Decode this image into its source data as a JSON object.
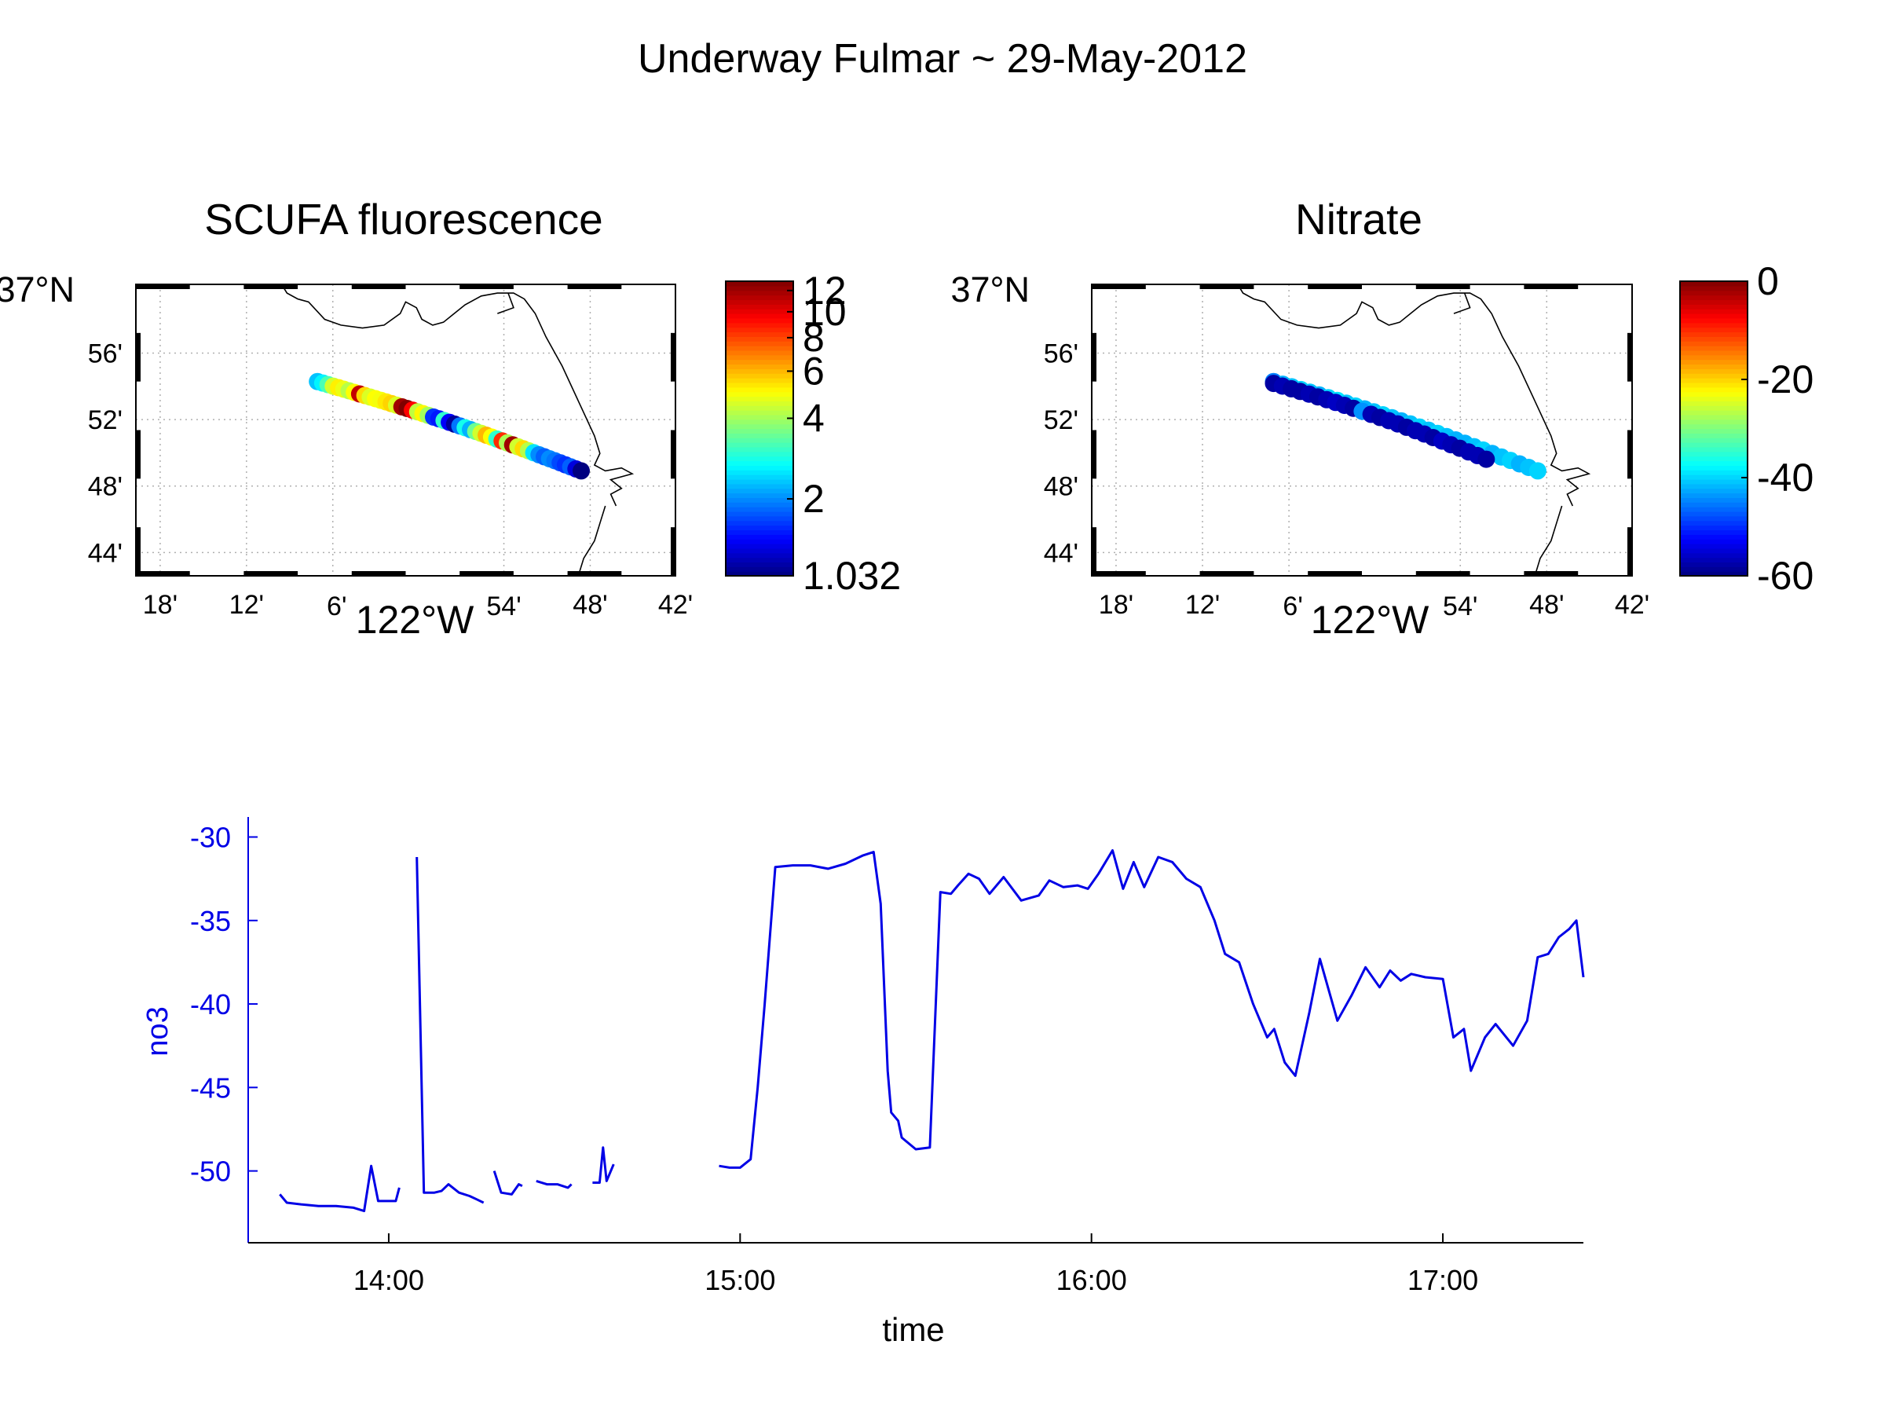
{
  "figure": {
    "title": "Underway Fulmar ~ 29-May-2012"
  },
  "colors": {
    "axes": "#000000",
    "grid": "#b0b0b0",
    "line": "#0000e6",
    "coast": "#000000"
  },
  "chart_data": [
    {
      "type": "scatter",
      "id": "fluor",
      "title": "SCUFA fluorescence",
      "lon_ticks": [
        "18'",
        "12'",
        "6'",
        "54'",
        "48'",
        "42'"
      ],
      "lon_center_label": "122°W",
      "lat_ticks": [
        "44'",
        "48'",
        "52'",
        "56'"
      ],
      "lat_top_label": "37°N",
      "xlim": [
        -122.33,
        -121.7
      ],
      "ylim": [
        36.7,
        37.0
      ],
      "grid": true,
      "colorbar": {
        "scale": "log",
        "range": [
          1.032,
          13
        ],
        "tick_labels": [
          "1.032",
          "2",
          "4",
          "6",
          "8",
          "10",
          "12"
        ],
        "tick_values": [
          1.032,
          2,
          4,
          6,
          8,
          10,
          12
        ]
      },
      "track": {
        "start": [
          -122.118,
          36.9
        ],
        "end": [
          -121.81,
          36.808
        ],
        "values": [
          2.3,
          2.6,
          3.2,
          4.5,
          5.2,
          4.8,
          4.2,
          5.0,
          11.0,
          5.5,
          4.6,
          5.0,
          4.9,
          5.3,
          5.6,
          4.6,
          12.0,
          13.0,
          9.5,
          4.3,
          5.1,
          4.0,
          1.6,
          1.5,
          3.0,
          1.4,
          1.1,
          1.9,
          2.8,
          2.2,
          3.5,
          4.5,
          6.0,
          5.0,
          3.0,
          8.5,
          4.1,
          12.0,
          4.5,
          5.5,
          4.2,
          2.5,
          2.0,
          1.8,
          2.0,
          1.9,
          1.7,
          1.6,
          1.8,
          1.3,
          1.032
        ]
      }
    },
    {
      "type": "scatter",
      "id": "nitrate",
      "title": "Nitrate",
      "lon_ticks": [
        "18'",
        "12'",
        "6'",
        "54'",
        "48'",
        "42'"
      ],
      "lon_center_label": "122°W",
      "lat_ticks": [
        "44'",
        "48'",
        "52'",
        "56'"
      ],
      "lat_top_label": "37°N",
      "xlim": [
        -122.33,
        -121.7
      ],
      "ylim": [
        36.7,
        37.0
      ],
      "grid": true,
      "colorbar": {
        "scale": "linear",
        "range": [
          -60,
          0
        ],
        "tick_labels": [
          "0",
          "-20",
          "-40",
          "-60"
        ],
        "tick_values": [
          0,
          -20,
          -40,
          -60
        ]
      },
      "track_upper": {
        "start": [
          -122.118,
          36.9
        ],
        "end": [
          -121.81,
          36.808
        ],
        "values": [
          -45,
          -42,
          -41,
          -40,
          -41,
          -42,
          -40,
          -39,
          -41,
          -40,
          -42,
          -41,
          -40,
          -41,
          -42,
          -41,
          -40,
          -41,
          -40,
          -41,
          -42,
          -42,
          -41,
          -40,
          -42,
          -41,
          -40,
          -42,
          -41,
          -40
        ]
      },
      "track_lower": {
        "start": [
          -122.118,
          36.898
        ],
        "end": [
          -121.87,
          36.82
        ],
        "values": [
          -58,
          -57,
          -58,
          -58,
          -57,
          -58,
          -57,
          -56,
          -57,
          -58,
          -44,
          -57,
          -58,
          -57,
          -57,
          -58,
          -57,
          -57,
          -58,
          -56,
          -57,
          -58,
          -57,
          -57,
          -58
        ]
      }
    },
    {
      "type": "line",
      "id": "no3",
      "title": "",
      "xlabel": "time",
      "ylabel": "no3",
      "x_tick_labels": [
        "14:00",
        "15:00",
        "16:00",
        "17:00"
      ],
      "x_tick_values": [
        14.0,
        15.0,
        16.0,
        17.0
      ],
      "y_tick_labels": [
        "-30",
        "-35",
        "-40",
        "-45",
        "-50"
      ],
      "y_tick_values": [
        -30,
        -35,
        -40,
        -45,
        -50
      ],
      "xlim": [
        13.6,
        17.4
      ],
      "ylim": [
        -54.3,
        -28.8
      ],
      "grid": false,
      "segments": [
        [
          [
            13.69,
            -51.4
          ],
          [
            13.71,
            -51.9
          ],
          [
            13.75,
            -52.0
          ],
          [
            13.8,
            -52.1
          ],
          [
            13.85,
            -52.1
          ],
          [
            13.9,
            -52.2
          ],
          [
            13.93,
            -52.4
          ],
          [
            13.95,
            -49.7
          ],
          [
            13.97,
            -51.8
          ],
          [
            14.0,
            -51.8
          ],
          [
            14.02,
            -51.8
          ],
          [
            14.03,
            -51.0
          ]
        ],
        [
          [
            14.08,
            -31.2
          ],
          [
            14.1,
            -51.3
          ],
          [
            14.13,
            -51.3
          ],
          [
            14.15,
            -51.2
          ],
          [
            14.17,
            -50.8
          ],
          [
            14.2,
            -51.3
          ],
          [
            14.23,
            -51.5
          ],
          [
            14.25,
            -51.7
          ],
          [
            14.27,
            -51.9
          ]
        ],
        [
          [
            14.3,
            -50.0
          ],
          [
            14.32,
            -51.3
          ],
          [
            14.35,
            -51.4
          ],
          [
            14.37,
            -50.8
          ],
          [
            14.38,
            -50.9
          ]
        ],
        [
          [
            14.42,
            -50.6
          ],
          [
            14.45,
            -50.8
          ],
          [
            14.48,
            -50.8
          ],
          [
            14.51,
            -51.0
          ],
          [
            14.52,
            -50.8
          ]
        ],
        [
          [
            14.58,
            -50.7
          ],
          [
            14.6,
            -50.7
          ],
          [
            14.61,
            -48.6
          ],
          [
            14.62,
            -50.6
          ],
          [
            14.64,
            -49.6
          ]
        ],
        [
          [
            14.94,
            -49.7
          ],
          [
            14.97,
            -49.8
          ],
          [
            15.0,
            -49.8
          ],
          [
            15.03,
            -49.3
          ],
          [
            15.05,
            -45.0
          ],
          [
            15.07,
            -40.0
          ],
          [
            15.1,
            -31.8
          ],
          [
            15.15,
            -31.7
          ],
          [
            15.2,
            -31.7
          ],
          [
            15.25,
            -31.9
          ],
          [
            15.3,
            -31.6
          ],
          [
            15.35,
            -31.1
          ],
          [
            15.38,
            -30.9
          ],
          [
            15.4,
            -34.0
          ],
          [
            15.42,
            -44.0
          ],
          [
            15.43,
            -46.5
          ],
          [
            15.45,
            -47.0
          ],
          [
            15.46,
            -48.0
          ],
          [
            15.5,
            -48.7
          ],
          [
            15.54,
            -48.6
          ],
          [
            15.57,
            -33.3
          ],
          [
            15.6,
            -33.4
          ],
          [
            15.62,
            -32.9
          ],
          [
            15.65,
            -32.2
          ],
          [
            15.68,
            -32.5
          ],
          [
            15.71,
            -33.4
          ],
          [
            15.75,
            -32.4
          ],
          [
            15.8,
            -33.8
          ],
          [
            15.85,
            -33.5
          ],
          [
            15.88,
            -32.6
          ],
          [
            15.92,
            -33.0
          ],
          [
            15.96,
            -32.9
          ],
          [
            15.99,
            -33.1
          ],
          [
            16.02,
            -32.2
          ],
          [
            16.06,
            -30.8
          ],
          [
            16.09,
            -33.1
          ],
          [
            16.12,
            -31.5
          ],
          [
            16.15,
            -33.0
          ],
          [
            16.19,
            -31.2
          ],
          [
            16.23,
            -31.5
          ],
          [
            16.27,
            -32.5
          ],
          [
            16.31,
            -33.0
          ],
          [
            16.35,
            -35.0
          ],
          [
            16.38,
            -37.0
          ],
          [
            16.42,
            -37.5
          ],
          [
            16.46,
            -40.0
          ],
          [
            16.5,
            -42.0
          ],
          [
            16.52,
            -41.5
          ],
          [
            16.55,
            -43.5
          ],
          [
            16.58,
            -44.3
          ],
          [
            16.62,
            -40.5
          ],
          [
            16.65,
            -37.3
          ],
          [
            16.7,
            -41.0
          ],
          [
            16.74,
            -39.5
          ],
          [
            16.78,
            -37.8
          ],
          [
            16.82,
            -39.0
          ],
          [
            16.85,
            -38.0
          ],
          [
            16.88,
            -38.6
          ],
          [
            16.91,
            -38.2
          ],
          [
            16.95,
            -38.4
          ],
          [
            17.0,
            -38.5
          ],
          [
            17.03,
            -42.0
          ],
          [
            17.06,
            -41.5
          ],
          [
            17.08,
            -44.0
          ],
          [
            17.12,
            -42.0
          ],
          [
            17.15,
            -41.2
          ],
          [
            17.2,
            -42.5
          ],
          [
            17.24,
            -41.0
          ],
          [
            17.27,
            -37.2
          ],
          [
            17.3,
            -37.0
          ],
          [
            17.33,
            -36.0
          ],
          [
            17.36,
            -35.5
          ],
          [
            17.38,
            -35.0
          ],
          [
            17.4,
            -38.4
          ]
        ]
      ]
    }
  ]
}
